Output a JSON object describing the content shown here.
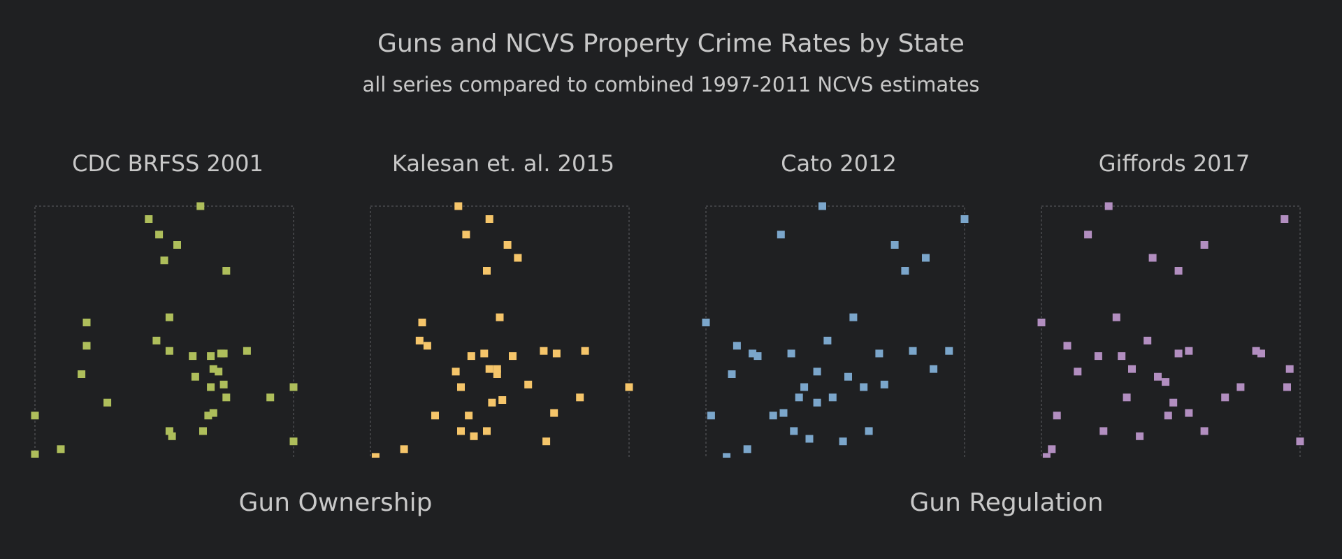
{
  "title": "Guns and NCVS Property Crime Rates by State",
  "subtitle": "all series compared to combined 1997-2011 NCVS estimates",
  "group_labels": {
    "ownership": "Gun Ownership",
    "regulation": "Gun Regulation"
  },
  "chart_data": [
    {
      "type": "scatter",
      "title": "CDC BRFSS 2001",
      "color": "#aebe5b",
      "xlim": [
        0,
        100
      ],
      "ylim": [
        0,
        100
      ],
      "grid": false,
      "points": [
        {
          "x": 64,
          "y": 100
        },
        {
          "x": 44,
          "y": 95
        },
        {
          "x": 48,
          "y": 89
        },
        {
          "x": 55,
          "y": 85
        },
        {
          "x": 50,
          "y": 79
        },
        {
          "x": 74,
          "y": 75
        },
        {
          "x": 20,
          "y": 55
        },
        {
          "x": 52,
          "y": 57
        },
        {
          "x": 20,
          "y": 46
        },
        {
          "x": 47,
          "y": 48
        },
        {
          "x": 52,
          "y": 44
        },
        {
          "x": 61,
          "y": 42
        },
        {
          "x": 68,
          "y": 42
        },
        {
          "x": 72,
          "y": 43
        },
        {
          "x": 73,
          "y": 43
        },
        {
          "x": 82,
          "y": 44
        },
        {
          "x": 69,
          "y": 37
        },
        {
          "x": 71,
          "y": 36
        },
        {
          "x": 62,
          "y": 34
        },
        {
          "x": 73,
          "y": 31
        },
        {
          "x": 68,
          "y": 30
        },
        {
          "x": 18,
          "y": 35
        },
        {
          "x": 74,
          "y": 26
        },
        {
          "x": 91,
          "y": 26
        },
        {
          "x": 100,
          "y": 30
        },
        {
          "x": 28,
          "y": 24
        },
        {
          "x": 69,
          "y": 20
        },
        {
          "x": 0,
          "y": 19
        },
        {
          "x": 67,
          "y": 19
        },
        {
          "x": 52,
          "y": 13
        },
        {
          "x": 53,
          "y": 11
        },
        {
          "x": 65,
          "y": 13
        },
        {
          "x": 100,
          "y": 9
        },
        {
          "x": 10,
          "y": 6
        },
        {
          "x": 0,
          "y": 4
        },
        {
          "x": 13,
          "y": 0
        }
      ]
    },
    {
      "type": "scatter",
      "title": "Kalesan et. al. 2015",
      "color": "#f5c56a",
      "xlim": [
        0,
        100
      ],
      "ylim": [
        0,
        100
      ],
      "grid": false,
      "points": [
        {
          "x": 34,
          "y": 100
        },
        {
          "x": 46,
          "y": 95
        },
        {
          "x": 37,
          "y": 89
        },
        {
          "x": 53,
          "y": 85
        },
        {
          "x": 57,
          "y": 80
        },
        {
          "x": 45,
          "y": 75
        },
        {
          "x": 50,
          "y": 57
        },
        {
          "x": 20,
          "y": 55
        },
        {
          "x": 19,
          "y": 48
        },
        {
          "x": 22,
          "y": 46
        },
        {
          "x": 39,
          "y": 42
        },
        {
          "x": 44,
          "y": 43
        },
        {
          "x": 55,
          "y": 42
        },
        {
          "x": 67,
          "y": 44
        },
        {
          "x": 72,
          "y": 43
        },
        {
          "x": 83,
          "y": 44
        },
        {
          "x": 46,
          "y": 37
        },
        {
          "x": 49,
          "y": 35
        },
        {
          "x": 49,
          "y": 37
        },
        {
          "x": 33,
          "y": 36
        },
        {
          "x": 35,
          "y": 30
        },
        {
          "x": 61,
          "y": 31
        },
        {
          "x": 51,
          "y": 25
        },
        {
          "x": 47,
          "y": 24
        },
        {
          "x": 81,
          "y": 26
        },
        {
          "x": 100,
          "y": 30
        },
        {
          "x": 25,
          "y": 19
        },
        {
          "x": 38,
          "y": 19
        },
        {
          "x": 71,
          "y": 20
        },
        {
          "x": 35,
          "y": 13
        },
        {
          "x": 40,
          "y": 11
        },
        {
          "x": 45,
          "y": 13
        },
        {
          "x": 68,
          "y": 9
        },
        {
          "x": 13,
          "y": 6
        },
        {
          "x": 2,
          "y": 3
        },
        {
          "x": 0,
          "y": 0
        }
      ]
    },
    {
      "type": "scatter",
      "title": "Cato 2012",
      "color": "#7ba6cb",
      "xlim": [
        0,
        100
      ],
      "ylim": [
        0,
        100
      ],
      "grid": false,
      "points": [
        {
          "x": 45,
          "y": 100
        },
        {
          "x": 100,
          "y": 95
        },
        {
          "x": 29,
          "y": 89
        },
        {
          "x": 73,
          "y": 85
        },
        {
          "x": 85,
          "y": 80
        },
        {
          "x": 77,
          "y": 75
        },
        {
          "x": 57,
          "y": 57
        },
        {
          "x": 0,
          "y": 55
        },
        {
          "x": 47,
          "y": 48
        },
        {
          "x": 12,
          "y": 46
        },
        {
          "x": 18,
          "y": 43
        },
        {
          "x": 20,
          "y": 42
        },
        {
          "x": 33,
          "y": 43
        },
        {
          "x": 67,
          "y": 43
        },
        {
          "x": 80,
          "y": 44
        },
        {
          "x": 94,
          "y": 44
        },
        {
          "x": 88,
          "y": 37
        },
        {
          "x": 43,
          "y": 36
        },
        {
          "x": 55,
          "y": 34
        },
        {
          "x": 10,
          "y": 35
        },
        {
          "x": 38,
          "y": 30
        },
        {
          "x": 61,
          "y": 30
        },
        {
          "x": 69,
          "y": 31
        },
        {
          "x": 36,
          "y": 26
        },
        {
          "x": 43,
          "y": 24
        },
        {
          "x": 49,
          "y": 26
        },
        {
          "x": 30,
          "y": 20
        },
        {
          "x": 26,
          "y": 19
        },
        {
          "x": 2,
          "y": 19
        },
        {
          "x": 34,
          "y": 13
        },
        {
          "x": 40,
          "y": 10
        },
        {
          "x": 53,
          "y": 9
        },
        {
          "x": 63,
          "y": 13
        },
        {
          "x": 16,
          "y": 6
        },
        {
          "x": 8,
          "y": 3
        },
        {
          "x": 4,
          "y": 0
        }
      ]
    },
    {
      "type": "scatter",
      "title": "Giffords 2017",
      "color": "#b28ec0",
      "xlim": [
        0,
        100
      ],
      "ylim": [
        0,
        100
      ],
      "grid": false,
      "points": [
        {
          "x": 26,
          "y": 100
        },
        {
          "x": 94,
          "y": 95
        },
        {
          "x": 18,
          "y": 89
        },
        {
          "x": 63,
          "y": 85
        },
        {
          "x": 43,
          "y": 80
        },
        {
          "x": 53,
          "y": 75
        },
        {
          "x": 29,
          "y": 57
        },
        {
          "x": 0,
          "y": 55
        },
        {
          "x": 41,
          "y": 48
        },
        {
          "x": 10,
          "y": 46
        },
        {
          "x": 22,
          "y": 42
        },
        {
          "x": 31,
          "y": 42
        },
        {
          "x": 53,
          "y": 43
        },
        {
          "x": 57,
          "y": 44
        },
        {
          "x": 83,
          "y": 44
        },
        {
          "x": 85,
          "y": 43
        },
        {
          "x": 14,
          "y": 36
        },
        {
          "x": 35,
          "y": 37
        },
        {
          "x": 45,
          "y": 34
        },
        {
          "x": 48,
          "y": 32
        },
        {
          "x": 96,
          "y": 37
        },
        {
          "x": 77,
          "y": 30
        },
        {
          "x": 95,
          "y": 30
        },
        {
          "x": 33,
          "y": 26
        },
        {
          "x": 51,
          "y": 24
        },
        {
          "x": 71,
          "y": 26
        },
        {
          "x": 57,
          "y": 20
        },
        {
          "x": 49,
          "y": 19
        },
        {
          "x": 6,
          "y": 19
        },
        {
          "x": 24,
          "y": 13
        },
        {
          "x": 38,
          "y": 11
        },
        {
          "x": 63,
          "y": 13
        },
        {
          "x": 100,
          "y": 9
        },
        {
          "x": 4,
          "y": 6
        },
        {
          "x": 2,
          "y": 3
        },
        {
          "x": 8,
          "y": 0
        }
      ]
    }
  ]
}
